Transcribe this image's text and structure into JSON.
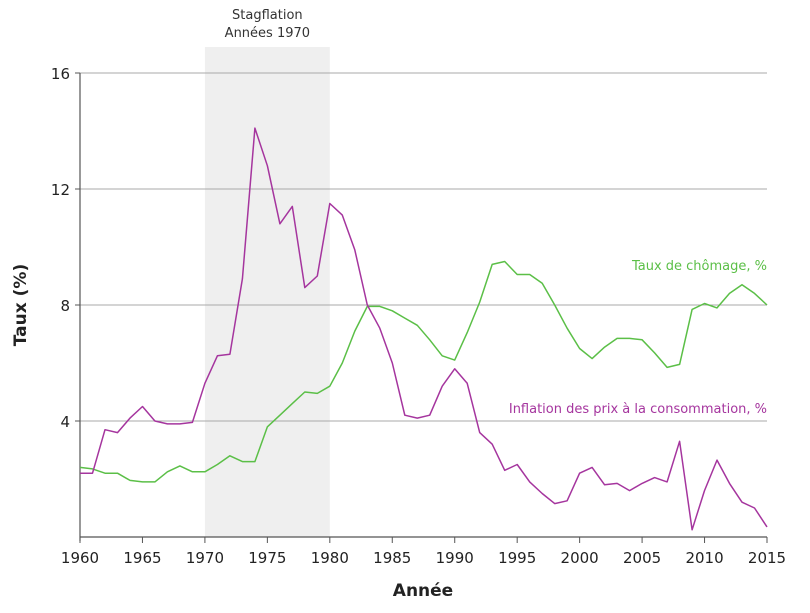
{
  "chart_data": {
    "type": "line",
    "xlabel": "Année",
    "ylabel": "Taux (%)",
    "xlim": [
      1960,
      2015
    ],
    "ylim": [
      0,
      16
    ],
    "xticks": [
      1960,
      1965,
      1970,
      1975,
      1980,
      1985,
      1990,
      1995,
      2000,
      2005,
      2010,
      2015
    ],
    "yticks": [
      4,
      8,
      12,
      16
    ],
    "grid": "horizontal",
    "shaded_region": {
      "from": 1970,
      "to": 1980,
      "label_line1": "Stagflation",
      "label_line2": "Années 1970",
      "color": "#efefef"
    },
    "x": [
      1960,
      1961,
      1962,
      1963,
      1964,
      1965,
      1966,
      1967,
      1968,
      1969,
      1970,
      1971,
      1972,
      1973,
      1974,
      1975,
      1976,
      1977,
      1978,
      1979,
      1980,
      1981,
      1982,
      1983,
      1984,
      1985,
      1986,
      1987,
      1988,
      1989,
      1990,
      1991,
      1992,
      1993,
      1994,
      1995,
      1996,
      1997,
      1998,
      1999,
      2000,
      2001,
      2002,
      2003,
      2004,
      2005,
      2006,
      2007,
      2008,
      2009,
      2010,
      2011,
      2012,
      2013,
      2014,
      2015
    ],
    "series": [
      {
        "name": "Taux de chômage, %",
        "color": "#5bbf47",
        "values": [
          2.4,
          2.35,
          2.2,
          2.2,
          1.95,
          1.9,
          1.9,
          2.25,
          2.45,
          2.25,
          2.25,
          2.5,
          2.8,
          2.6,
          2.6,
          3.8,
          4.2,
          4.6,
          5.0,
          4.95,
          5.2,
          6.0,
          7.1,
          7.95,
          7.95,
          7.8,
          7.55,
          7.3,
          6.8,
          6.25,
          6.1,
          7.05,
          8.1,
          9.4,
          9.5,
          9.05,
          9.05,
          8.75,
          8.0,
          7.2,
          6.5,
          6.15,
          6.55,
          6.85,
          6.85,
          6.8,
          6.35,
          5.85,
          5.95,
          7.85,
          8.05,
          7.9,
          8.4,
          8.7,
          8.4,
          8.0
        ]
      },
      {
        "name": "Inflation des prix à la consommation, %",
        "color": "#a5359e",
        "values": [
          2.2,
          2.2,
          3.7,
          3.6,
          4.1,
          4.5,
          4.0,
          3.9,
          3.9,
          3.95,
          5.3,
          6.25,
          6.3,
          8.9,
          14.1,
          12.8,
          10.8,
          11.4,
          8.6,
          9.0,
          11.5,
          11.1,
          9.9,
          8.0,
          7.2,
          6.0,
          4.2,
          4.1,
          4.2,
          5.2,
          5.8,
          5.3,
          3.6,
          3.2,
          2.3,
          2.5,
          1.9,
          1.5,
          1.15,
          1.25,
          2.2,
          2.4,
          1.8,
          1.85,
          1.6,
          1.85,
          2.05,
          1.9,
          3.3,
          0.25,
          1.6,
          2.65,
          1.85,
          1.2,
          1.0,
          0.35
        ]
      }
    ]
  }
}
